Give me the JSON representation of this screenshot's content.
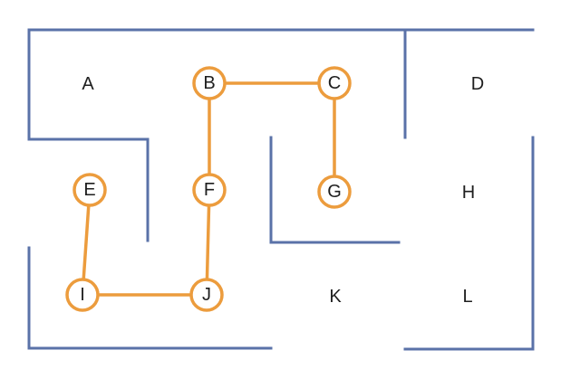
{
  "colors": {
    "wall": "#5a72a8",
    "path": "#ec9c3d",
    "text": "#1e1e1e",
    "background": "#ffffff"
  },
  "path_nodes": [
    {
      "id": "B",
      "label": "B"
    },
    {
      "id": "C",
      "label": "C"
    },
    {
      "id": "F",
      "label": "F"
    },
    {
      "id": "G",
      "label": "G"
    },
    {
      "id": "E",
      "label": "E"
    },
    {
      "id": "I",
      "label": "I"
    },
    {
      "id": "J",
      "label": "J"
    }
  ],
  "path_edges": [
    [
      "B",
      "C"
    ],
    [
      "C",
      "G"
    ],
    [
      "B",
      "F"
    ],
    [
      "F",
      "J"
    ],
    [
      "J",
      "I"
    ],
    [
      "I",
      "E"
    ]
  ],
  "rooms": [
    {
      "id": "A",
      "label": "A"
    },
    {
      "id": "D",
      "label": "D"
    },
    {
      "id": "H",
      "label": "H"
    },
    {
      "id": "K",
      "label": "K"
    },
    {
      "id": "L",
      "label": "L"
    }
  ]
}
